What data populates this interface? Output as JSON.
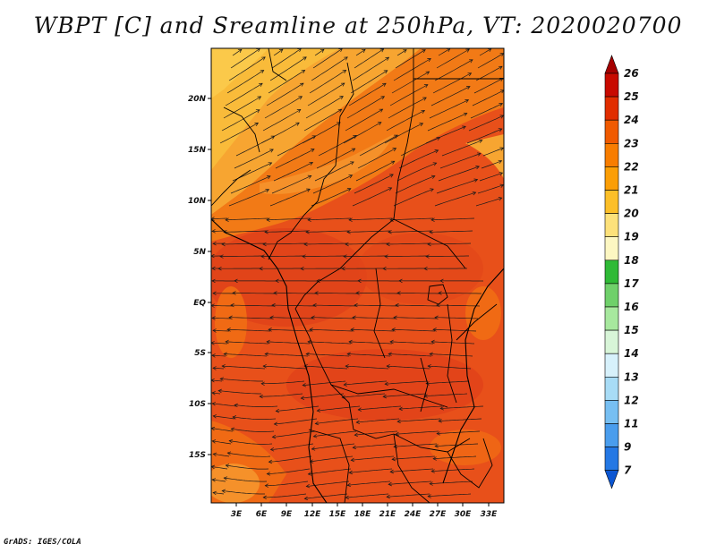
{
  "title": "WBPT [C] and Sreamline at 250hPa, VT: 2020020700",
  "credit": "GrADS: IGES/COLA",
  "map": {
    "lon_labels": [
      "3E",
      "6E",
      "9E",
      "12E",
      "15E",
      "18E",
      "21E",
      "24E",
      "27E",
      "30E",
      "33E"
    ],
    "lat_labels": [
      "20N",
      "15N",
      "10N",
      "5N",
      "EQ",
      "5S",
      "10S",
      "15S"
    ]
  },
  "colorbar": {
    "labels": [
      "26",
      "25",
      "24",
      "23",
      "22",
      "21",
      "20",
      "19",
      "18",
      "17",
      "16",
      "15",
      "14",
      "13",
      "12",
      "11",
      "9",
      "7"
    ],
    "colors": [
      "#a50000",
      "#c80a00",
      "#e12d00",
      "#f05a00",
      "#f87d00",
      "#fb9e06",
      "#fcbf28",
      "#fde17a",
      "#fdf7c2",
      "#2fba36",
      "#6fd06a",
      "#a7e89e",
      "#d8f5d8",
      "#d7f1fb",
      "#a8dcf6",
      "#77bff2",
      "#4a9ded",
      "#2478e4",
      "#0c56d2"
    ]
  },
  "legend_colors": {
    "orange_main": "#f06a14",
    "light_orange": "#f7a531",
    "red_orange": "#e0421a"
  }
}
